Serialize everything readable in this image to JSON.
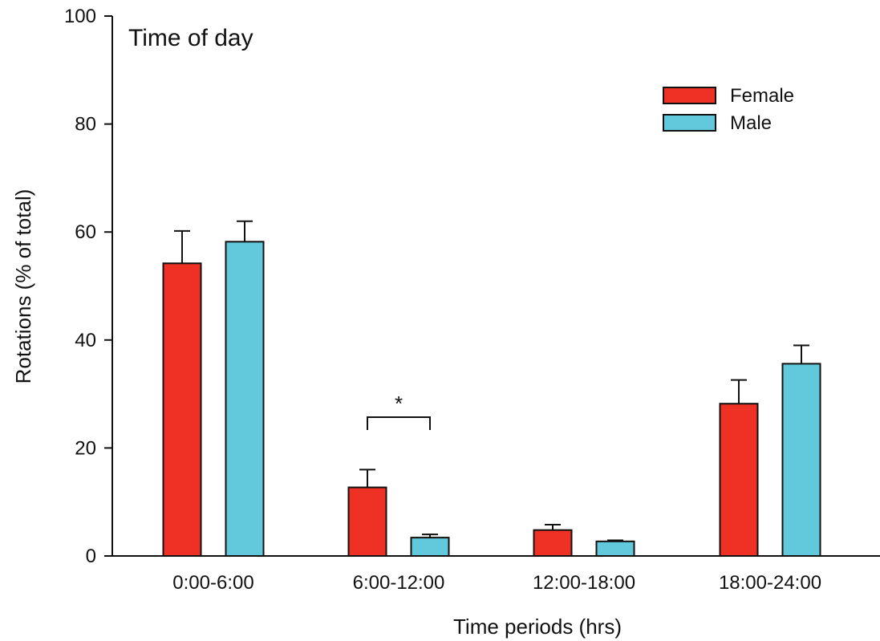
{
  "chart_data": {
    "type": "bar",
    "title": "Time of day",
    "xlabel": "Time periods (hrs)",
    "ylabel": "Rotations (% of total)",
    "ylim": [
      0,
      100
    ],
    "yticks": [
      0,
      20,
      40,
      60,
      80,
      100
    ],
    "grid": false,
    "legend_position": "top-right",
    "categories": [
      "0:00-6:00",
      "6:00-12:00",
      "12:00-18:00",
      "18:00-24:00"
    ],
    "series": [
      {
        "name": "Female",
        "color": "#ee3124",
        "values": [
          54.2,
          12.7,
          4.8,
          28.2
        ],
        "errors": [
          6.0,
          3.3,
          1.0,
          4.4
        ]
      },
      {
        "name": "Male",
        "color": "#62c9dc",
        "values": [
          58.2,
          3.4,
          2.7,
          35.6
        ],
        "errors": [
          3.8,
          0.6,
          0.2,
          3.4
        ]
      }
    ],
    "annotations": [
      {
        "text": "*",
        "category": "6:00-12:00"
      }
    ]
  }
}
